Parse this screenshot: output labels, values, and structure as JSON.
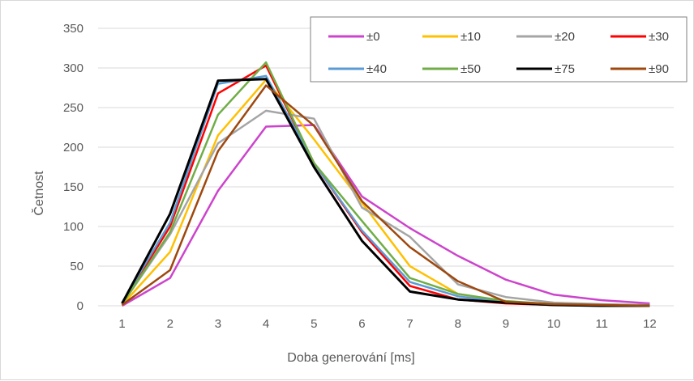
{
  "chart_data": {
    "type": "line",
    "title": "",
    "xlabel": "Doba generování [ms]",
    "ylabel": "Četnost",
    "x": [
      1,
      2,
      3,
      4,
      5,
      6,
      7,
      8,
      9,
      10,
      11,
      12
    ],
    "ylim": [
      0,
      350
    ],
    "yticks": [
      0,
      50,
      100,
      150,
      200,
      250,
      300,
      350
    ],
    "grid": true,
    "legend_position": "top-right",
    "series": [
      {
        "name": "±0",
        "color": "#cc44cc",
        "values": [
          0,
          35,
          145,
          226,
          228,
          138,
          98,
          63,
          33,
          14,
          7,
          3
        ]
      },
      {
        "name": "±10",
        "color": "#ffc000",
        "values": [
          1,
          68,
          215,
          285,
          210,
          130,
          50,
          15,
          5,
          2,
          1,
          0
        ]
      },
      {
        "name": "±20",
        "color": "#a5a5a5",
        "values": [
          2,
          90,
          205,
          246,
          236,
          124,
          87,
          27,
          11,
          4,
          2,
          1
        ]
      },
      {
        "name": "±30",
        "color": "#ff0000",
        "values": [
          3,
          100,
          268,
          303,
          180,
          93,
          25,
          8,
          3,
          1,
          0,
          0
        ]
      },
      {
        "name": "±40",
        "color": "#5b9bd5",
        "values": [
          4,
          105,
          280,
          290,
          180,
          95,
          30,
          12,
          4,
          1,
          0,
          0
        ]
      },
      {
        "name": "±50",
        "color": "#70ad47",
        "values": [
          2,
          93,
          241,
          307,
          180,
          107,
          35,
          15,
          6,
          2,
          1,
          0
        ]
      },
      {
        "name": "±75",
        "color": "#000000",
        "values": [
          3,
          116,
          284,
          286,
          175,
          82,
          18,
          8,
          4,
          1,
          0,
          0
        ]
      },
      {
        "name": "±90",
        "color": "#9e480e",
        "values": [
          1,
          45,
          195,
          278,
          227,
          132,
          74,
          31,
          5,
          2,
          1,
          0
        ]
      }
    ]
  }
}
